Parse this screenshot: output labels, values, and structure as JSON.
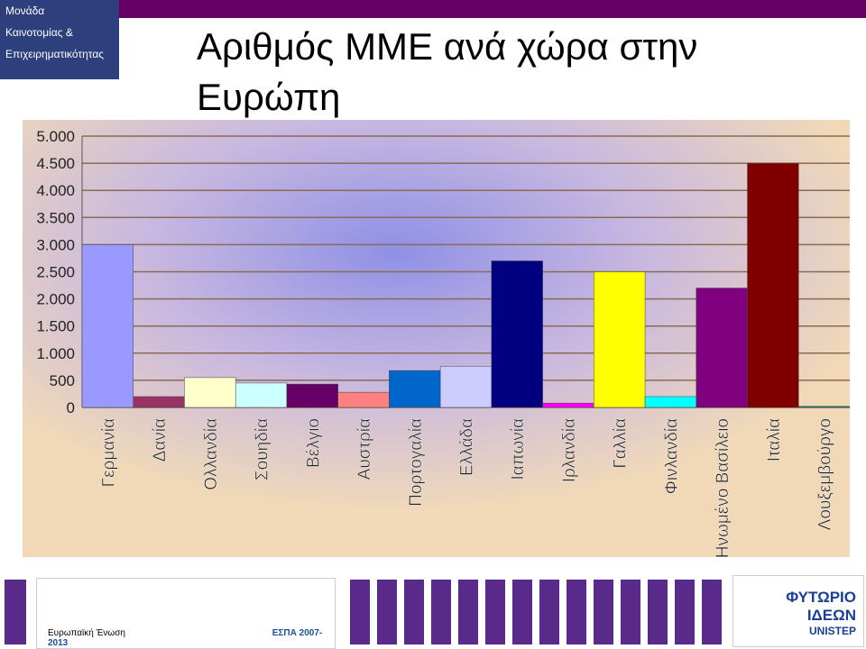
{
  "logo": {
    "line1": "Μονάδα",
    "line2": "Καινοτομίας &",
    "line3": "Επιχειρηματικότητας"
  },
  "footer": {
    "eu": "Ευρωπαϊκή Ένωση",
    "espa": "ΕΣΠΑ 2007-2013",
    "brand": "ΦΥΤΩΡΙΟ ΙΔΕΩΝ",
    "brand_sub": "UNISTEP"
  },
  "chart_data": {
    "type": "bar",
    "title": "Αριθμός ΜΜΕ ανά χώρα στην Ευρώπη",
    "categories": [
      "Γερμανία",
      "Δανία",
      "Ολλανδία",
      "Σουηδία",
      "Βέλγιο",
      "Αυστρία",
      "Πορτογαλία",
      "Ελλάδα",
      "Ιαπωνία",
      "Ιρλανδία",
      "Γαλλία",
      "Φινλανδία",
      "Ηνωμένο Βασίλειο",
      "Ιταλία",
      "Λουξεμβούργο"
    ],
    "values": [
      3000,
      200,
      550,
      450,
      430,
      280,
      680,
      760,
      2700,
      80,
      2500,
      200,
      2200,
      4500,
      20
    ],
    "colors": [
      "#9999ff",
      "#993366",
      "#ffffcc",
      "#ccffff",
      "#660066",
      "#ff8080",
      "#0066cc",
      "#ccccff",
      "#000080",
      "#ff00ff",
      "#ffff00",
      "#00ffff",
      "#800080",
      "#800000",
      "#008080"
    ],
    "ylim": [
      0,
      5000
    ],
    "yticks": [
      0,
      {
        "value": 500,
        "label": "500"
      },
      {
        "value": 1000,
        "label": "1.000"
      },
      {
        "value": 1500,
        "label": "1.500"
      },
      {
        "value": 2000,
        "label": "2.000"
      },
      {
        "value": 2500,
        "label": "2.500"
      },
      {
        "value": 3000,
        "label": "3.000"
      },
      {
        "value": 3500,
        "label": "3.500"
      },
      {
        "value": 4000,
        "label": "4.000"
      },
      {
        "value": 4500,
        "label": "4.500"
      },
      {
        "value": 5000,
        "label": "5.000"
      }
    ],
    "grid": true
  }
}
